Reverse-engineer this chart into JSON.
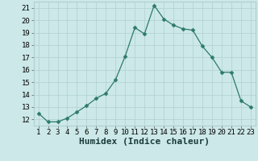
{
  "x": [
    1,
    2,
    3,
    4,
    5,
    6,
    7,
    8,
    9,
    10,
    11,
    12,
    13,
    14,
    15,
    16,
    17,
    18,
    19,
    20,
    21,
    22,
    23
  ],
  "y": [
    12.5,
    11.8,
    11.8,
    12.1,
    12.6,
    13.1,
    13.7,
    14.1,
    15.2,
    17.1,
    19.4,
    18.9,
    21.2,
    20.1,
    19.6,
    19.3,
    19.2,
    17.9,
    17.0,
    15.8,
    15.8,
    13.5,
    13.0
  ],
  "line_color": "#2d7a6a",
  "marker": "D",
  "marker_size": 2.5,
  "bg_color": "#cce8e8",
  "grid_color": "#b0d0d0",
  "xlabel": "Humidex (Indice chaleur)",
  "xlabel_fontsize": 8,
  "ylim": [
    11.5,
    21.5
  ],
  "xlim": [
    0.5,
    23.5
  ],
  "yticks": [
    12,
    13,
    14,
    15,
    16,
    17,
    18,
    19,
    20,
    21
  ],
  "tick_fontsize": 6.5
}
